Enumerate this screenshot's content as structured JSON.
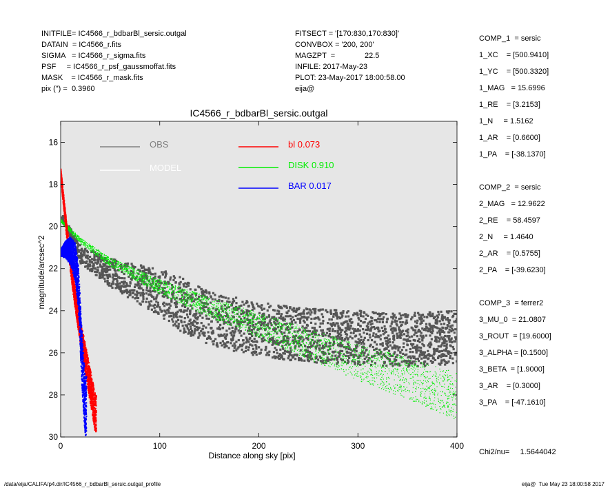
{
  "header_left": [
    "INITFILE= IC4566_r_bdbarBl_sersic.outgal",
    "DATAIN  = IC4566_r.fits",
    "SIGMA   = IC4566_r_sigma.fits",
    "PSF     = IC4566_r_psf_gaussmoffat.fits",
    "MASK    = IC4566_r_mask.fits",
    "pix (\") =  0.3960"
  ],
  "header_mid": [
    "FITSECT = '[170:830,170:830]'",
    "CONVBOX = '200, 200'",
    "MAGZPT  =              22.5",
    "INFILE: 2017-May-23",
    "PLOT: 23-May-2017 18:00:58.00",
    "eija@"
  ],
  "params": [
    "COMP_1  = sersic",
    "1_XC    = [500.9410]",
    "1_YC    = [500.3320]",
    "1_MAG   = 15.6996",
    "1_RE    = [3.2153]",
    "1_N     = 1.5162",
    "1_AR    = [0.6600]",
    "1_PA    = [-38.1370]",
    "",
    "COMP_2  = sersic",
    "2_MAG   = 12.9622",
    "2_RE    = 58.4597",
    "2_N     = 1.4640",
    "2_AR    = [0.5755]",
    "2_PA    = [-39.6230]",
    "",
    "COMP_3  = ferrer2",
    "3_MU_0  = 21.0807",
    "3_ROUT  = [19.6000]",
    "3_ALPHA = [0.1500]",
    "3_BETA  = [1.9000]",
    "3_AR    = [0.3000]",
    "3_PA    = [-47.1610]",
    "",
    "",
    "Chi2/nu=     1.5644042"
  ],
  "footer_left": "/data/eija/CALIFA/p4.dir/IC4566_r_bdbarBl_sersic.outgal_profile",
  "footer_right": "eija@  Tue May 23 18:00:58 2017",
  "chart_data": {
    "type": "scatter",
    "title": "IC4566_r_bdbarBl_sersic.outgal",
    "xlabel": "Distance along sky [pix]",
    "ylabel": "magnitude/arcsec^2",
    "xlim": [
      0,
      400
    ],
    "ylim": [
      30,
      15
    ],
    "y_inverted": true,
    "x_ticks": [
      0,
      100,
      200,
      300,
      400
    ],
    "y_ticks": [
      16,
      18,
      20,
      22,
      24,
      26,
      28,
      30
    ],
    "background": "#e6e6e6",
    "legend": [
      {
        "label": "OBS",
        "color": "#808080"
      },
      {
        "label": "MODEL",
        "color": "#ffffff"
      },
      {
        "label": "bl  0.073",
        "color": "#ff0000"
      },
      {
        "label": "DISK  0.910",
        "color": "#00ee00"
      },
      {
        "label": "BAR  0.017",
        "color": "#0000ff"
      }
    ],
    "series": [
      {
        "name": "OBS",
        "color": "#555555",
        "description_points": [
          [
            1,
            19.5
          ],
          [
            20,
            21.2
          ],
          [
            50,
            22.0
          ],
          [
            100,
            22.8
          ],
          [
            150,
            24.0
          ],
          [
            200,
            24.5
          ],
          [
            250,
            24.8
          ],
          [
            300,
            24.9
          ],
          [
            350,
            25.0
          ],
          [
            400,
            24.9
          ]
        ]
      },
      {
        "name": "DISK",
        "color": "#00ee00",
        "points": [
          [
            0,
            19.8
          ],
          [
            20,
            20.8
          ],
          [
            50,
            21.9
          ],
          [
            100,
            23.2
          ],
          [
            150,
            24.3
          ],
          [
            200,
            25.3
          ],
          [
            250,
            26.3
          ],
          [
            300,
            27.3
          ],
          [
            350,
            28.2
          ],
          [
            400,
            29.2
          ]
        ]
      },
      {
        "name": "bl",
        "color": "#ff0000",
        "points": [
          [
            0,
            17.6
          ],
          [
            5,
            20.0
          ],
          [
            10,
            22.2
          ],
          [
            15,
            24.0
          ],
          [
            20,
            25.6
          ],
          [
            25,
            27.0
          ],
          [
            30,
            28.4
          ],
          [
            35,
            29.8
          ]
        ]
      },
      {
        "name": "BAR",
        "color": "#0000ff",
        "points": [
          [
            0,
            21.4
          ],
          [
            5,
            21.5
          ],
          [
            10,
            21.8
          ],
          [
            15,
            22.6
          ],
          [
            18,
            24.0
          ],
          [
            20,
            26.0
          ],
          [
            22,
            28.0
          ],
          [
            25,
            30.0
          ]
        ]
      }
    ]
  }
}
